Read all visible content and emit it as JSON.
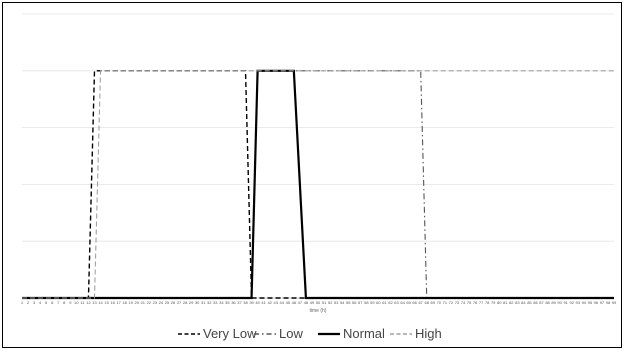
{
  "chart_data": {
    "type": "line",
    "title": "",
    "xlabel": "time (h)",
    "ylabel": "",
    "x": [
      1,
      2,
      3,
      4,
      5,
      6,
      7,
      8,
      9,
      10,
      11,
      12,
      13,
      14,
      15,
      16,
      17,
      18,
      19,
      20,
      21,
      22,
      23,
      24,
      25,
      26,
      27,
      28,
      29,
      30,
      31,
      32,
      33,
      34,
      35,
      36,
      37,
      38,
      39,
      40,
      41,
      42,
      43,
      44,
      45,
      46,
      47,
      48,
      49,
      50,
      51,
      52,
      53,
      54,
      55,
      56,
      57,
      58,
      59,
      60,
      61,
      62,
      63,
      64,
      65,
      66,
      67,
      68,
      69,
      70,
      71,
      72,
      73,
      74,
      75,
      76,
      77,
      78,
      79,
      80,
      81,
      82,
      83,
      84,
      85,
      86,
      87,
      88,
      89,
      90,
      91,
      92,
      93,
      94,
      95,
      96,
      97,
      98,
      99
    ],
    "ylim": [
      0,
      1.25
    ],
    "grid": true,
    "legend_position": "bottom",
    "series": [
      {
        "name": "Very Low",
        "style": "dash",
        "color": "#000000",
        "segments": [
          [
            1,
            0
          ],
          [
            12,
            0
          ],
          [
            13,
            1
          ],
          [
            38,
            1
          ],
          [
            39,
            0
          ],
          [
            99,
            0
          ]
        ]
      },
      {
        "name": "Low",
        "style": "dashdot",
        "color": "#555555",
        "segments": [
          [
            1,
            0
          ],
          [
            39,
            0
          ],
          [
            40,
            1
          ],
          [
            48,
            1
          ],
          [
            49,
            1
          ],
          [
            67,
            1
          ],
          [
            68,
            0
          ],
          [
            99,
            0
          ]
        ]
      },
      {
        "name": "Normal",
        "style": "solid",
        "color": "#000000",
        "segments": [
          [
            1,
            0
          ],
          [
            39,
            0
          ],
          [
            40,
            1
          ],
          [
            46,
            1
          ],
          [
            48,
            0
          ],
          [
            99,
            0
          ]
        ]
      },
      {
        "name": "High",
        "style": "dash",
        "color": "#a0a0a0",
        "segments": [
          [
            1,
            0
          ],
          [
            13,
            0
          ],
          [
            14,
            1
          ],
          [
            98,
            1
          ],
          [
            99,
            1
          ]
        ]
      }
    ]
  }
}
